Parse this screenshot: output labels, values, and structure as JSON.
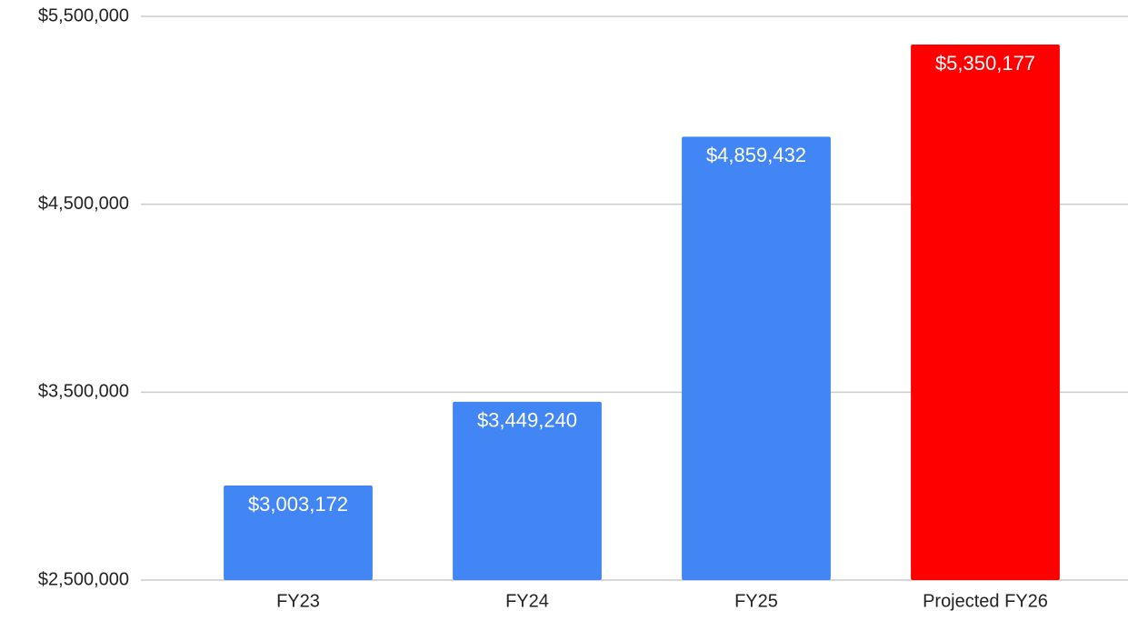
{
  "chart_data": {
    "type": "bar",
    "categories": [
      "FY23",
      "FY24",
      "FY25",
      "Projected FY26"
    ],
    "values": [
      3003172,
      3449240,
      4859432,
      5350177
    ],
    "value_labels": [
      "$3,003,172",
      "$3,449,240",
      "$4,859,432",
      "$5,350,177"
    ],
    "colors": [
      "#4285f4",
      "#4285f4",
      "#4285f4",
      "#ff0000"
    ],
    "ylim": [
      2500000,
      5500000
    ],
    "yticks": [
      {
        "value": 2500000,
        "label": "$2,500,000"
      },
      {
        "value": 3500000,
        "label": "$3,500,000"
      },
      {
        "value": 4500000,
        "label": "$4,500,000"
      },
      {
        "value": 5500000,
        "label": "$5,500,000"
      }
    ],
    "grid": true
  }
}
